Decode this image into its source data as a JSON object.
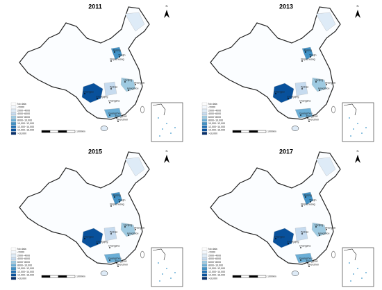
{
  "panels": [
    {
      "title": "2011"
    },
    {
      "title": "2013"
    },
    {
      "title": "2015"
    },
    {
      "title": "2017"
    }
  ],
  "legend": {
    "items": [
      {
        "label": "No data",
        "color": "#ffffff"
      },
      {
        "label": "<2000",
        "color": "#f3f8fd"
      },
      {
        "label": "2000~4000",
        "color": "#deebf7"
      },
      {
        "label": "4000~6000",
        "color": "#c6dbef"
      },
      {
        "label": "6000~8000",
        "color": "#9ecae1"
      },
      {
        "label": "8000~10,000",
        "color": "#6baed6"
      },
      {
        "label": "10,000~12,000",
        "color": "#4292c6"
      },
      {
        "label": "12,000~14,000",
        "color": "#2171b5"
      },
      {
        "label": "14,000~16,000",
        "color": "#08519c"
      },
      {
        "label": ">16,000",
        "color": "#08306b"
      }
    ]
  },
  "cities": [
    "Beijing",
    "Tianjin",
    "Shijiazhuang",
    "Nanjing",
    "Shanghai",
    "Hangzhou",
    "Wuhan",
    "Chengdu",
    "Chongqing",
    "Changsha",
    "Guangzhou",
    "Dongguan",
    "Shenzhen"
  ],
  "scale_label": "1000km",
  "north_label": "N"
}
